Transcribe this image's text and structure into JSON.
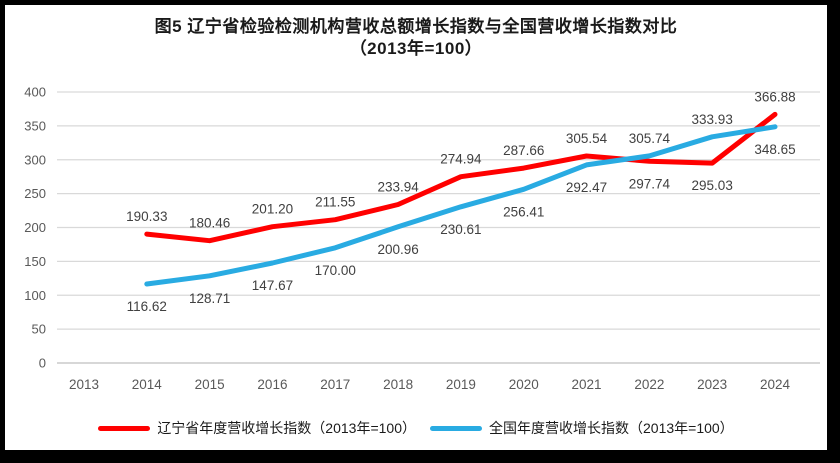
{
  "title": {
    "line1": "图5  辽宁省检验检测机构营收总额增长指数与全国营收增长指数对比",
    "line2": "（2013年=100）"
  },
  "chart_data": {
    "type": "line",
    "categories": [
      "2013",
      "2014",
      "2015",
      "2016",
      "2017",
      "2018",
      "2019",
      "2020",
      "2021",
      "2022",
      "2023",
      "2024"
    ],
    "series": [
      {
        "name": "辽宁省年度营收增长指数（2013年=100）",
        "color": "#FF0000",
        "values": [
          null,
          190.33,
          180.46,
          201.2,
          211.55,
          233.94,
          274.94,
          287.66,
          305.54,
          297.74,
          295.03,
          366.88
        ],
        "label_side": [
          "",
          "above",
          "above",
          "above",
          "above",
          "above",
          "above",
          "above",
          "above",
          "below",
          "below",
          "above"
        ]
      },
      {
        "name": "全国年度营收增长指数（2013年=100）",
        "color": "#29ABE2",
        "values": [
          null,
          116.62,
          128.71,
          147.67,
          170.0,
          200.96,
          230.61,
          256.41,
          292.47,
          305.74,
          333.93,
          348.65
        ],
        "label_side": [
          "",
          "below",
          "below",
          "below",
          "below",
          "below",
          "below",
          "below",
          "below",
          "above",
          "above",
          "below"
        ]
      }
    ],
    "ylim": [
      0,
      400
    ],
    "ytick_step": 50,
    "grid": true,
    "legend_position": "bottom",
    "colors": {
      "gridline": "#D9D9D9",
      "axis_line": "#BFBFBF",
      "tick_label": "#595959",
      "data_label": "#404040"
    }
  },
  "legend": {
    "items": [
      {
        "label": "辽宁省年度营收增长指数（2013年=100）",
        "color": "#FF0000"
      },
      {
        "label": "全国年度营收增长指数（2013年=100）",
        "color": "#29ABE2"
      }
    ]
  }
}
